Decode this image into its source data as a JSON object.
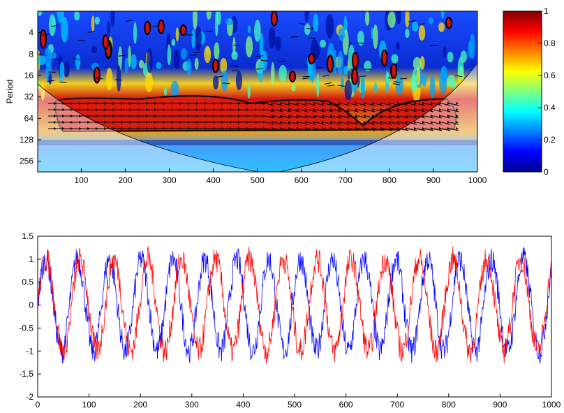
{
  "chart_data": [
    {
      "type": "heatmap",
      "title": "",
      "xlabel": "",
      "ylabel": "Period",
      "xlim": [
        1,
        1000
      ],
      "x_ticks": [
        "100",
        "200",
        "300",
        "400",
        "500",
        "600",
        "700",
        "800",
        "900",
        "1000"
      ],
      "y_ticks": [
        "4",
        "8",
        "16",
        "32",
        "64",
        "128",
        "256"
      ],
      "y_scale": "log2",
      "ylim": [
        2,
        362
      ],
      "significant_region": {
        "x_range": [
          50,
          960
        ],
        "period_range": [
          28,
          90
        ],
        "coherence": 0.9
      },
      "colorbar": {
        "ticks": [
          "0",
          "0.2",
          "0.4",
          "0.6",
          "0.8",
          "1"
        ],
        "range": [
          0,
          1
        ],
        "colormap": "jet"
      }
    },
    {
      "type": "line",
      "title": "",
      "xlabel": "",
      "ylabel": "",
      "xlim": [
        0,
        1000
      ],
      "ylim": [
        -2,
        1.5
      ],
      "x_ticks": [
        "0",
        "100",
        "200",
        "300",
        "400",
        "500",
        "600",
        "700",
        "800",
        "900",
        "1000"
      ],
      "y_ticks": [
        "-2",
        "-1.5",
        "-1",
        "-0.5",
        "0",
        "0.5",
        "1",
        "1.5"
      ],
      "series": [
        {
          "name": "blue",
          "color": "#0000ff",
          "period": 62,
          "amplitude": 1.0,
          "noise": 0.35
        },
        {
          "name": "red",
          "color": "#ff0000",
          "period": 66,
          "amplitude": 1.0,
          "noise": 0.35
        }
      ]
    }
  ]
}
